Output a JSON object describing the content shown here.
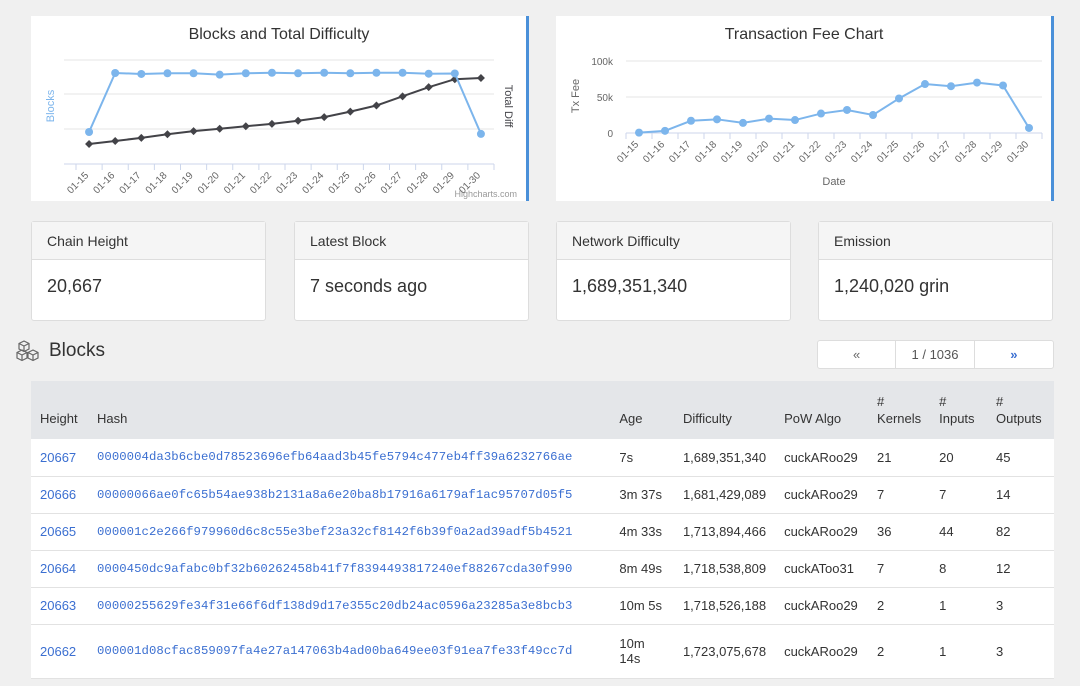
{
  "charts": {
    "blocks_chart": {
      "title": "Blocks and Total Difficulty",
      "ylabel_left": "Blocks",
      "ylabel_right": "Total Diff",
      "credit": "Highcharts.com"
    },
    "fee_chart": {
      "title": "Transaction Fee Chart",
      "ylabel": "Tx Fee",
      "xlabel": "Date"
    }
  },
  "chart_data": [
    {
      "type": "line",
      "title": "Blocks and Total Difficulty",
      "x": [
        "01-15",
        "01-16",
        "01-17",
        "01-18",
        "01-19",
        "01-20",
        "01-21",
        "01-22",
        "01-23",
        "01-24",
        "01-25",
        "01-26",
        "01-27",
        "01-28",
        "01-29",
        "01-30"
      ],
      "series": [
        {
          "name": "Blocks",
          "color": "#7cb5ec",
          "values": [
            200,
            1435,
            1415,
            1430,
            1430,
            1400,
            1430,
            1440,
            1430,
            1440,
            1430,
            1440,
            1440,
            1420,
            1425,
            160
          ]
        },
        {
          "name": "Total Diff",
          "color": "#434348",
          "values": [
            0.0,
            0.05,
            0.1,
            0.16,
            0.21,
            0.25,
            0.29,
            0.33,
            0.38,
            0.44,
            0.53,
            0.63,
            0.78,
            0.93,
            1.06,
            1.08
          ]
        }
      ],
      "grid": true,
      "legend": "none"
    },
    {
      "type": "line",
      "title": "Transaction Fee Chart",
      "xlabel": "Date",
      "ylabel": "Tx Fee",
      "x": [
        "01-15",
        "01-16",
        "01-17",
        "01-18",
        "01-19",
        "01-20",
        "01-21",
        "01-22",
        "01-23",
        "01-24",
        "01-25",
        "01-26",
        "01-27",
        "01-28",
        "01-29",
        "01-30"
      ],
      "yticks": [
        "0",
        "50k",
        "100k"
      ],
      "ylim": [
        0,
        100000
      ],
      "series": [
        {
          "color": "#7cb5ec",
          "values": [
            500,
            3000,
            17000,
            19000,
            14000,
            20000,
            18000,
            27000,
            32000,
            25000,
            48000,
            68000,
            65000,
            70000,
            66000,
            7000
          ]
        }
      ],
      "grid": true,
      "legend": "none"
    }
  ],
  "stats": [
    {
      "label": "Chain Height",
      "value": "20,667"
    },
    {
      "label": "Latest Block",
      "value": "7 seconds ago"
    },
    {
      "label": "Network Difficulty",
      "value": "1,689,351,340"
    },
    {
      "label": "Emission",
      "value": "1,240,020 grin"
    }
  ],
  "blocks_section": {
    "title": "Blocks",
    "icon": "cubes-icon"
  },
  "pager": {
    "prev": "«",
    "current": "1 / 1036",
    "next": "»"
  },
  "table": {
    "headers": [
      "Height",
      "Hash",
      "Age",
      "Difficulty",
      "PoW Algo",
      "#\nKernels",
      "#\nInputs",
      "#\nOutputs"
    ],
    "rows": [
      {
        "height": "20667",
        "hash": "0000004da3b6cbe0d78523696efb64aad3b45fe5794c477eb4ff39a6232766ae",
        "age": "7s",
        "difficulty": "1,689,351,340",
        "algo": "cuckARoo29",
        "kernels": "21",
        "inputs": "20",
        "outputs": "45"
      },
      {
        "height": "20666",
        "hash": "00000066ae0fc65b54ae938b2131a8a6e20ba8b17916a6179af1ac95707d05f5",
        "age": "3m 37s",
        "difficulty": "1,681,429,089",
        "algo": "cuckARoo29",
        "kernels": "7",
        "inputs": "7",
        "outputs": "14"
      },
      {
        "height": "20665",
        "hash": "000001c2e266f979960d6c8c55e3bef23a32cf8142f6b39f0a2ad39adf5b4521",
        "age": "4m 33s",
        "difficulty": "1,713,894,466",
        "algo": "cuckARoo29",
        "kernels": "36",
        "inputs": "44",
        "outputs": "82"
      },
      {
        "height": "20664",
        "hash": "0000450dc9afabc0bf32b60262458b41f7f8394493817240ef88267cda30f990",
        "age": "8m 49s",
        "difficulty": "1,718,538,809",
        "algo": "cuckAToo31",
        "kernels": "7",
        "inputs": "8",
        "outputs": "12"
      },
      {
        "height": "20663",
        "hash": "00000255629fe34f31e66f6df138d9d17e355c20db24ac0596a23285a3e8bcb3",
        "age": "10m 5s",
        "difficulty": "1,718,526,188",
        "algo": "cuckARoo29",
        "kernels": "2",
        "inputs": "1",
        "outputs": "3"
      },
      {
        "height": "20662",
        "hash": "000001d08cfac859097fa4e27a147063b4ad00ba649ee03f91ea7fe33f49cc7d",
        "age": "10m 14s",
        "difficulty": "1,723,075,678",
        "algo": "cuckARoo29",
        "kernels": "2",
        "inputs": "1",
        "outputs": "3"
      }
    ]
  }
}
